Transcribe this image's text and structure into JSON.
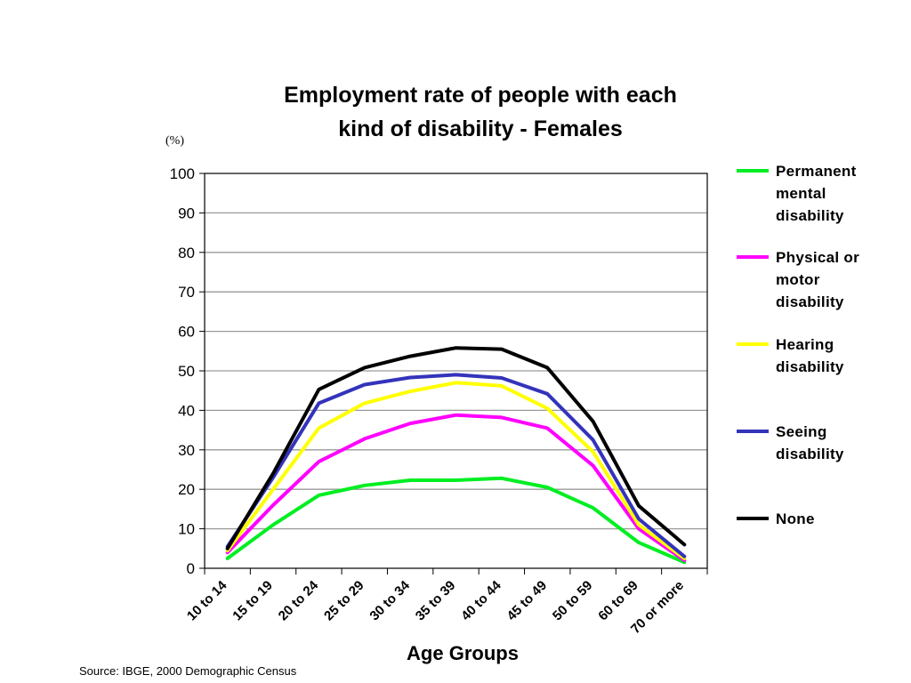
{
  "chart_data": {
    "type": "line",
    "title": [
      "Employment rate of people with each",
      "kind of disability - Females"
    ],
    "unit_label": "(%)",
    "xlabel": "Age Groups",
    "categories": [
      "10 to 14",
      "15 to 19",
      "20 to 24",
      "25 to 29",
      "30 to 34",
      "35 to 39",
      "40 to 44",
      "45 to 49",
      "50 to 59",
      "60 to 69",
      "70 or more"
    ],
    "ylim": [
      0,
      100
    ],
    "yticks": [
      0,
      10,
      20,
      30,
      40,
      50,
      60,
      70,
      80,
      90,
      100
    ],
    "grid": true,
    "legend_position": "right",
    "series": [
      {
        "name": "Permanent mental disability",
        "color": "#00ee22",
        "values": [
          2.5,
          11,
          18.5,
          21,
          22.3,
          22.3,
          22.8,
          20.5,
          15.3,
          6.5,
          1.5
        ]
      },
      {
        "name": "Physical or motor disability",
        "color": "#ff00ff",
        "values": [
          4,
          16,
          27,
          32.8,
          36.7,
          38.8,
          38.2,
          35.5,
          26,
          10,
          2
        ]
      },
      {
        "name": "Hearing disability",
        "color": "#ffff00",
        "values": [
          4.5,
          20,
          35.5,
          41.8,
          44.8,
          47,
          46.2,
          40.5,
          29.5,
          11,
          2.5
        ]
      },
      {
        "name": "Seeing disability",
        "color": "#3333bb",
        "values": [
          5.5,
          23,
          41.8,
          46.5,
          48.3,
          49,
          48.2,
          44.2,
          32.5,
          12.5,
          3
        ]
      },
      {
        "name": "None",
        "color": "#000000",
        "values": [
          5,
          24,
          45.3,
          50.8,
          53.7,
          55.8,
          55.5,
          50.8,
          37.2,
          15.8,
          6
        ]
      }
    ]
  },
  "legend": {
    "items": [
      {
        "lines": [
          "Permanent",
          "mental",
          "disability"
        ],
        "color": "#00ee22"
      },
      {
        "lines": [
          "Physical or",
          "motor",
          "disability"
        ],
        "color": "#ff00ff"
      },
      {
        "lines": [
          "Hearing",
          "disability"
        ],
        "color": "#ffff00"
      },
      {
        "lines": [
          "Seeing",
          "disability"
        ],
        "color": "#3333bb"
      },
      {
        "lines": [
          "None"
        ],
        "color": "#000000"
      }
    ]
  },
  "source": "Source: IBGE, 2000 Demographic Census"
}
